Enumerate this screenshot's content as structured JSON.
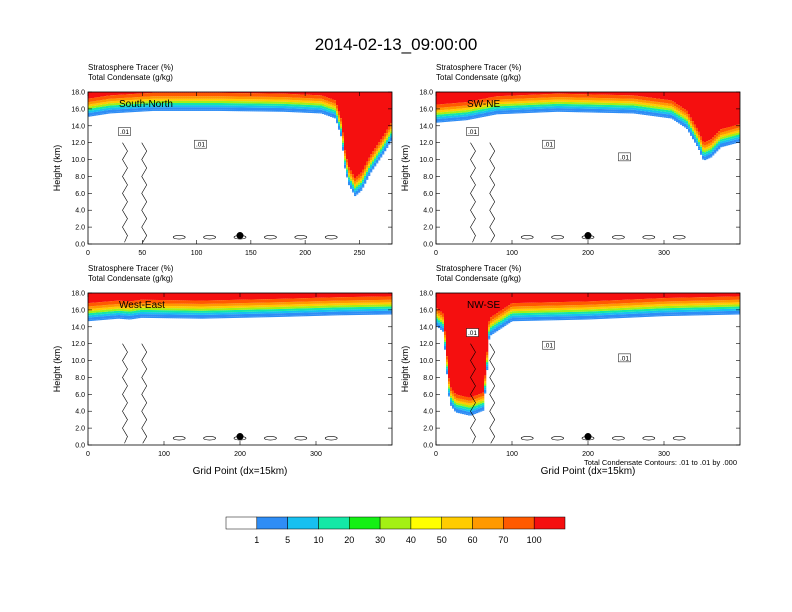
{
  "figure_title": "2014-02-13_09:00:00",
  "footer_note": "Total Condensate Contours: .01 to .01 by .000",
  "colorbar": {
    "colors": [
      "#ffffff",
      "#2f8df5",
      "#17c0f0",
      "#14e8a6",
      "#14f014",
      "#a4f014",
      "#ffff00",
      "#ffcc00",
      "#ff9900",
      "#ff5a00",
      "#f50f0f"
    ],
    "labels": [
      "1",
      "5",
      "10",
      "20",
      "30",
      "40",
      "50",
      "60",
      "70",
      "100"
    ]
  },
  "chart_data": [
    {
      "type": "heatmap",
      "panel": "South-North",
      "subtitles": [
        "Stratosphere Tracer   (%)",
        "Total Condensate   (g/kg)"
      ],
      "ylabel": "Height (km)",
      "xlabel": "",
      "xlim": [
        0,
        280
      ],
      "ylim": [
        0,
        18
      ],
      "xticks": [
        0,
        50,
        100,
        150,
        200,
        250
      ],
      "yticks": [
        "0.0",
        "2.0",
        "4.0",
        "6.0",
        "8.0",
        "10.0",
        "12.0",
        "14.0",
        "16.0",
        "18.0"
      ],
      "tracer_base_km": [
        [
          0,
          15.2
        ],
        [
          20,
          15.6
        ],
        [
          60,
          15.9
        ],
        [
          120,
          15.9
        ],
        [
          180,
          15.8
        ],
        [
          215,
          15.6
        ],
        [
          228,
          15.0
        ],
        [
          234,
          12.5
        ],
        [
          236,
          9.5
        ],
        [
          240,
          7.2
        ],
        [
          246,
          5.8
        ],
        [
          252,
          6.5
        ],
        [
          260,
          8.5
        ],
        [
          272,
          10.8
        ],
        [
          280,
          12.5
        ]
      ],
      "contour_labels": [
        ".01",
        ".01"
      ],
      "marker_x": 140,
      "marker_y_km": 1.0
    },
    {
      "type": "heatmap",
      "panel": "SW-NE",
      "subtitles": [
        "Stratosphere Tracer   (%)",
        "Total Condensate   (g/kg)"
      ],
      "ylabel": "Height (km)",
      "xlabel": "",
      "xlim": [
        0,
        400
      ],
      "ylim": [
        0,
        18
      ],
      "xticks": [
        0,
        100,
        200,
        300
      ],
      "yticks": [
        "0.0",
        "2.0",
        "4.0",
        "6.0",
        "8.0",
        "10.0",
        "12.0",
        "14.0",
        "16.0",
        "18.0"
      ],
      "tracer_base_km": [
        [
          0,
          14.5
        ],
        [
          40,
          14.8
        ],
        [
          80,
          15.5
        ],
        [
          160,
          15.8
        ],
        [
          260,
          15.6
        ],
        [
          310,
          15.0
        ],
        [
          330,
          13.8
        ],
        [
          345,
          11.5
        ],
        [
          352,
          10.0
        ],
        [
          362,
          10.4
        ],
        [
          375,
          11.6
        ],
        [
          400,
          12.2
        ]
      ],
      "contour_labels": [
        ".01",
        ".01",
        ".01"
      ],
      "marker_x": 200,
      "marker_y_km": 1.0
    },
    {
      "type": "heatmap",
      "panel": "West-East",
      "subtitles": [
        "Stratosphere Tracer   (%)",
        "Total Condensate   (g/kg)"
      ],
      "ylabel": "Height (km)",
      "xlabel": "Grid Point (dx=15km)",
      "xlim": [
        0,
        400
      ],
      "ylim": [
        0,
        18
      ],
      "xticks": [
        0,
        100,
        200,
        300
      ],
      "yticks": [
        "0.0",
        "2.0",
        "4.0",
        "6.0",
        "8.0",
        "10.0",
        "12.0",
        "14.0",
        "16.0",
        "18.0"
      ],
      "tracer_base_km": [
        [
          0,
          14.8
        ],
        [
          40,
          15.1
        ],
        [
          55,
          15.0
        ],
        [
          70,
          15.2
        ],
        [
          150,
          15.1
        ],
        [
          250,
          15.3
        ],
        [
          330,
          15.5
        ],
        [
          400,
          15.6
        ]
      ],
      "contour_labels": [],
      "marker_x": 200,
      "marker_y_km": 1.0
    },
    {
      "type": "heatmap",
      "panel": "NW-SE",
      "subtitles": [
        "Stratosphere Tracer   (%)",
        "Total Condensate   (g/kg)"
      ],
      "ylabel": "Height (km)",
      "xlabel": "Grid Point (dx=15km)",
      "xlim": [
        0,
        400
      ],
      "ylim": [
        0,
        18
      ],
      "xticks": [
        0,
        100,
        200,
        300
      ],
      "yticks": [
        "0.0",
        "2.0",
        "4.0",
        "6.0",
        "8.0",
        "10.0",
        "12.0",
        "14.0",
        "16.0",
        "18.0"
      ],
      "tracer_base_km": [
        [
          0,
          14.3
        ],
        [
          10,
          13.5
        ],
        [
          14,
          9.0
        ],
        [
          18,
          5.0
        ],
        [
          26,
          4.0
        ],
        [
          45,
          3.6
        ],
        [
          62,
          4.2
        ],
        [
          66,
          7.5
        ],
        [
          70,
          13.0
        ],
        [
          100,
          14.8
        ],
        [
          200,
          15.0
        ],
        [
          300,
          15.4
        ],
        [
          400,
          15.6
        ]
      ],
      "contour_labels": [
        ".01",
        ".01",
        ".01"
      ],
      "marker_x": 200,
      "marker_y_km": 1.0
    }
  ]
}
